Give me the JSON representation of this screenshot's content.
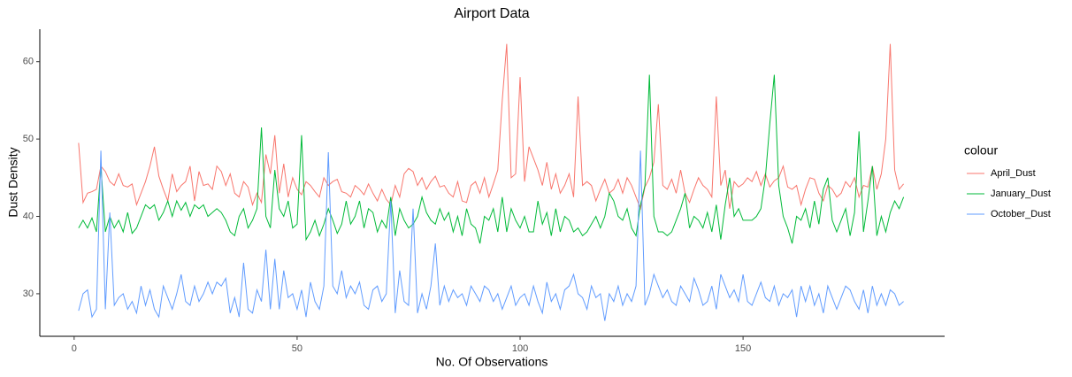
{
  "chart_data": {
    "type": "line",
    "title": "Airport Data",
    "xlabel": "No. Of Observations",
    "ylabel": "Dust Density",
    "legend_title": "colour",
    "legend_position": "right",
    "grid": false,
    "xlim": [
      -7.7,
      195.2
    ],
    "ylim": [
      24.5,
      64.2
    ],
    "xticks": [
      0,
      50,
      100,
      150
    ],
    "yticks": [
      30,
      40,
      50,
      60
    ],
    "x": [
      1,
      2,
      3,
      4,
      5,
      6,
      7,
      8,
      9,
      10,
      11,
      12,
      13,
      14,
      15,
      16,
      17,
      18,
      19,
      20,
      21,
      22,
      23,
      24,
      25,
      26,
      27,
      28,
      29,
      30,
      31,
      32,
      33,
      34,
      35,
      36,
      37,
      38,
      39,
      40,
      41,
      42,
      43,
      44,
      45,
      46,
      47,
      48,
      49,
      50,
      51,
      52,
      53,
      54,
      55,
      56,
      57,
      58,
      59,
      60,
      61,
      62,
      63,
      64,
      65,
      66,
      67,
      68,
      69,
      70,
      71,
      72,
      73,
      74,
      75,
      76,
      77,
      78,
      79,
      80,
      81,
      82,
      83,
      84,
      85,
      86,
      87,
      88,
      89,
      90,
      91,
      92,
      93,
      94,
      95,
      96,
      97,
      98,
      99,
      100,
      101,
      102,
      103,
      104,
      105,
      106,
      107,
      108,
      109,
      110,
      111,
      112,
      113,
      114,
      115,
      116,
      117,
      118,
      119,
      120,
      121,
      122,
      123,
      124,
      125,
      126,
      127,
      128,
      129,
      130,
      131,
      132,
      133,
      134,
      135,
      136,
      137,
      138,
      139,
      140,
      141,
      142,
      143,
      144,
      145,
      146,
      147,
      148,
      149,
      150,
      151,
      152,
      153,
      154,
      155,
      156,
      157,
      158,
      159,
      160,
      161,
      162,
      163,
      164,
      165,
      166,
      167,
      168,
      169,
      170,
      171,
      172,
      173,
      174,
      175,
      176,
      177,
      178,
      179,
      180,
      181,
      182,
      183,
      184,
      185,
      186
    ],
    "series": [
      {
        "name": "April_Dust",
        "color": "#F8766D",
        "values": [
          49.5,
          41.8,
          43,
          43.2,
          43.5,
          46.5,
          45.8,
          44.5,
          44,
          45.5,
          44,
          43.8,
          44.2,
          41.5,
          43,
          44.5,
          46.5,
          49,
          45.2,
          43.5,
          42,
          45.5,
          43.2,
          44,
          44.5,
          46.5,
          42,
          45.8,
          44,
          44.2,
          43.5,
          46.5,
          45.8,
          44,
          45.5,
          43,
          42.5,
          44.5,
          43.8,
          41.5,
          43,
          41.8,
          48,
          45.5,
          50.5,
          43,
          46.8,
          42.5,
          45,
          43.5,
          42.8,
          44.5,
          44,
          43.2,
          42.5,
          45,
          44,
          44.5,
          44.8,
          43.2,
          43,
          42.5,
          44,
          43.5,
          42.8,
          44.2,
          43,
          42,
          43.5,
          42.2,
          41.5,
          44,
          42.5,
          45.5,
          46.2,
          45.8,
          44,
          45,
          43.5,
          44.5,
          45.2,
          43.8,
          44,
          43,
          42.5,
          44.5,
          42,
          41.8,
          44,
          44.5,
          43,
          45,
          42.5,
          44.2,
          46,
          55,
          62.3,
          45,
          45.5,
          58,
          44.5,
          49,
          47.5,
          46,
          44,
          47,
          43.5,
          45.5,
          43,
          44,
          45.5,
          42.5,
          55.5,
          44,
          44.5,
          44,
          42,
          43.5,
          44.8,
          43,
          43.5,
          44.8,
          43,
          45,
          44,
          42.5,
          41,
          43.8,
          45,
          47,
          54.5,
          44,
          43.5,
          44.8,
          43,
          46,
          43,
          41.8,
          43.5,
          45,
          44,
          43.5,
          42.5,
          55.5,
          44,
          46,
          41,
          44.5,
          43.8,
          44.2,
          45,
          44.5,
          45.8,
          44,
          45.5,
          43.8,
          44.6,
          45,
          46.5,
          43.8,
          43.5,
          44,
          41.5,
          43.5,
          45,
          44.8,
          43,
          42,
          44,
          43.5,
          42.5,
          43,
          44.5,
          43.8,
          45,
          42.5,
          44,
          43.8,
          46.5,
          43.5,
          45.5,
          50,
          62.3,
          46,
          43.5,
          44.2
        ]
      },
      {
        "name": "January_Dust",
        "color": "#00BA38",
        "values": [
          38.5,
          39.5,
          38.5,
          39.8,
          38,
          46.5,
          38,
          40,
          38.5,
          39.5,
          38,
          40.5,
          37.8,
          38.5,
          40,
          41.5,
          41,
          41.5,
          39.5,
          40.5,
          42,
          40,
          42,
          40.8,
          41.8,
          40,
          41.5,
          41,
          41.5,
          40,
          40.5,
          41,
          40.5,
          39.5,
          38,
          37.5,
          40,
          41,
          38.5,
          39.5,
          41,
          51.5,
          40,
          38.5,
          46,
          41,
          40,
          42,
          38.5,
          39,
          50.5,
          37,
          38,
          39.5,
          37.5,
          39,
          41,
          39.5,
          37.8,
          39,
          42,
          39,
          40,
          42,
          38.5,
          41,
          40.5,
          38,
          39.5,
          38.5,
          42.5,
          37.5,
          41,
          39.5,
          38.5,
          39,
          40,
          42.5,
          40.5,
          39.5,
          39,
          41,
          39.5,
          40.5,
          38,
          40,
          37.5,
          41,
          39,
          38.5,
          36.5,
          40,
          39.5,
          41,
          38,
          42.5,
          38,
          41,
          39.5,
          38.5,
          40,
          38,
          38,
          42,
          39,
          40.5,
          37.5,
          41,
          38,
          40,
          39.5,
          38,
          38.5,
          37.5,
          38,
          39,
          40,
          38.5,
          40,
          43,
          42,
          40,
          39.5,
          41,
          38.5,
          37.5,
          41.5,
          44,
          58.3,
          40,
          38,
          38,
          37.5,
          38,
          39.5,
          41,
          43,
          38.5,
          40,
          39.5,
          38.5,
          40.5,
          38,
          41.5,
          37,
          41.5,
          45,
          40,
          41,
          39.5,
          39.5,
          39.5,
          40,
          41,
          45,
          52,
          58.3,
          44,
          40,
          38.5,
          36.5,
          40,
          39.5,
          41,
          38.5,
          42,
          39,
          43.5,
          45,
          39.5,
          38,
          39.5,
          41,
          37.5,
          40.5,
          51,
          38,
          42,
          46.5,
          37.5,
          40,
          38,
          40.5,
          42,
          41,
          42.5
        ]
      },
      {
        "name": "October_Dust",
        "color": "#619CFF",
        "values": [
          27.8,
          30,
          30.5,
          27,
          28,
          48.5,
          28,
          40.5,
          28.5,
          29.5,
          30,
          28,
          29,
          27.5,
          31,
          28.5,
          30.5,
          28,
          27,
          31,
          29.5,
          28,
          30,
          32.5,
          29,
          28.5,
          31,
          29,
          30,
          31.5,
          30,
          31.5,
          31,
          32,
          27.5,
          29.5,
          27,
          34,
          28,
          27.5,
          30.5,
          29,
          35.7,
          28,
          34.5,
          28,
          33,
          29.5,
          30,
          28,
          30.5,
          27,
          31.5,
          29,
          28,
          31,
          48.3,
          31,
          30,
          33,
          29.5,
          31,
          30,
          31.5,
          28.5,
          28,
          30.5,
          31,
          29,
          30,
          42,
          27.5,
          33,
          29,
          28.5,
          41,
          27.5,
          30,
          28,
          31,
          36.5,
          28.5,
          31,
          29,
          30.5,
          29.5,
          30,
          28.5,
          31,
          30,
          29,
          31,
          30.5,
          29,
          30,
          28,
          29.5,
          31,
          28.5,
          29.5,
          30,
          28.5,
          31,
          29,
          27.5,
          31.5,
          29,
          30,
          28,
          30.5,
          31,
          32.5,
          30,
          29.5,
          28,
          31,
          29.5,
          30,
          26.5,
          30,
          29,
          31,
          28.5,
          30,
          29,
          31,
          48.5,
          28.5,
          30,
          32.5,
          31,
          29.5,
          30.5,
          29,
          28.5,
          31,
          30,
          29,
          32,
          30.5,
          28.5,
          29,
          31,
          28,
          32.5,
          31,
          29.5,
          30.5,
          29,
          32.5,
          29,
          28.5,
          30,
          31.5,
          29.5,
          29,
          31,
          28.5,
          30,
          29.5,
          30.5,
          27,
          31,
          29,
          31,
          28.5,
          30,
          27.5,
          31,
          29.5,
          28,
          29.5,
          31,
          30.5,
          29,
          28,
          30.5,
          27.5,
          31,
          28.5,
          30,
          28.5,
          30.5,
          30,
          28.5,
          29
        ]
      }
    ]
  }
}
